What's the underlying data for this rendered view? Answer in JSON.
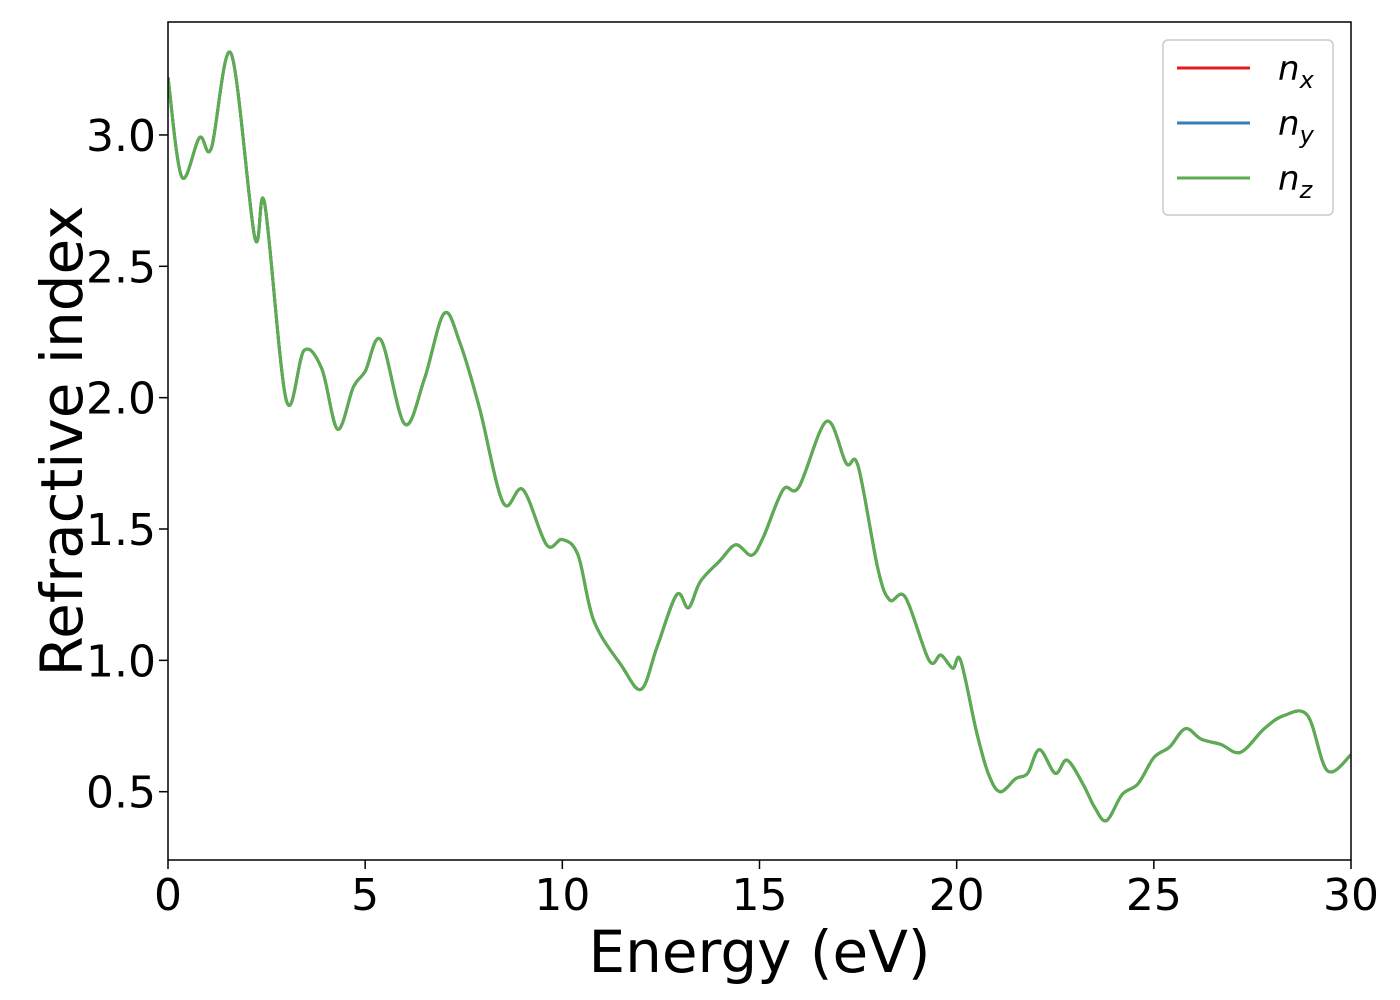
{
  "chart_data": {
    "type": "line",
    "title": "",
    "xlabel": "Energy (eV)",
    "ylabel": "Refractive index",
    "xlim": [
      0,
      30
    ],
    "ylim": [
      0.24,
      3.43
    ],
    "xticks": [
      0,
      5,
      10,
      15,
      20,
      25,
      30
    ],
    "xtick_labels": [
      "0",
      "5",
      "10",
      "15",
      "20",
      "25",
      "30"
    ],
    "yticks": [
      0.5,
      1.0,
      1.5,
      2.0,
      2.5,
      3.0
    ],
    "ytick_labels": [
      "0.5",
      "1.0",
      "1.5",
      "2.0",
      "2.5",
      "3.0"
    ],
    "grid": false,
    "legend_position": "top-right",
    "x": [
      0,
      0.35,
      0.8,
      1.1,
      1.6,
      2.2,
      2.45,
      3.0,
      3.45,
      3.9,
      4.3,
      4.7,
      5.0,
      5.4,
      6.0,
      6.5,
      7.0,
      7.4,
      7.9,
      8.5,
      9.0,
      9.6,
      10.0,
      10.4,
      10.8,
      11.5,
      12.0,
      12.4,
      12.9,
      13.2,
      13.5,
      14.0,
      14.4,
      14.8,
      15.1,
      15.6,
      16.0,
      16.7,
      17.2,
      17.5,
      18.0,
      18.3,
      18.7,
      19.3,
      19.6,
      19.9,
      20.1,
      20.5,
      20.8,
      21.1,
      21.5,
      21.8,
      22.1,
      22.5,
      22.8,
      23.2,
      23.5,
      23.8,
      24.2,
      24.6,
      25.0,
      25.4,
      25.8,
      26.2,
      26.7,
      27.2,
      27.8,
      28.3,
      28.9,
      29.4,
      30.0
    ],
    "series": [
      {
        "name": "n_x",
        "color": "#e41a1c",
        "values": [
          3.22,
          2.84,
          2.99,
          2.95,
          3.31,
          2.61,
          2.74,
          1.99,
          2.18,
          2.11,
          1.88,
          2.04,
          2.1,
          2.22,
          1.9,
          2.07,
          2.32,
          2.21,
          1.96,
          1.6,
          1.65,
          1.44,
          1.46,
          1.4,
          1.15,
          0.98,
          0.89,
          1.05,
          1.25,
          1.2,
          1.3,
          1.38,
          1.44,
          1.4,
          1.47,
          1.65,
          1.66,
          1.91,
          1.75,
          1.74,
          1.35,
          1.23,
          1.24,
          1.0,
          1.02,
          0.97,
          1.0,
          0.73,
          0.57,
          0.5,
          0.55,
          0.57,
          0.66,
          0.57,
          0.62,
          0.53,
          0.44,
          0.39,
          0.49,
          0.53,
          0.63,
          0.67,
          0.74,
          0.7,
          0.68,
          0.65,
          0.74,
          0.79,
          0.79,
          0.58,
          0.64
        ]
      },
      {
        "name": "n_y",
        "color": "#377eb8",
        "values": [
          3.22,
          2.84,
          2.99,
          2.95,
          3.31,
          2.61,
          2.74,
          1.99,
          2.18,
          2.11,
          1.88,
          2.04,
          2.1,
          2.22,
          1.9,
          2.07,
          2.32,
          2.21,
          1.96,
          1.6,
          1.65,
          1.44,
          1.46,
          1.4,
          1.15,
          0.98,
          0.89,
          1.05,
          1.25,
          1.2,
          1.3,
          1.38,
          1.44,
          1.4,
          1.47,
          1.65,
          1.66,
          1.91,
          1.75,
          1.74,
          1.35,
          1.23,
          1.24,
          1.0,
          1.02,
          0.97,
          1.0,
          0.73,
          0.57,
          0.5,
          0.55,
          0.57,
          0.66,
          0.57,
          0.62,
          0.53,
          0.44,
          0.39,
          0.49,
          0.53,
          0.63,
          0.67,
          0.74,
          0.7,
          0.68,
          0.65,
          0.74,
          0.79,
          0.79,
          0.58,
          0.64
        ]
      },
      {
        "name": "n_z",
        "color": "#5aae4f",
        "values": [
          3.22,
          2.84,
          2.99,
          2.95,
          3.31,
          2.61,
          2.74,
          1.99,
          2.18,
          2.11,
          1.88,
          2.04,
          2.1,
          2.22,
          1.9,
          2.07,
          2.32,
          2.21,
          1.96,
          1.6,
          1.65,
          1.44,
          1.46,
          1.4,
          1.15,
          0.98,
          0.89,
          1.05,
          1.25,
          1.2,
          1.3,
          1.38,
          1.44,
          1.4,
          1.47,
          1.65,
          1.66,
          1.91,
          1.75,
          1.74,
          1.35,
          1.23,
          1.24,
          1.0,
          1.02,
          0.97,
          1.0,
          0.73,
          0.57,
          0.5,
          0.55,
          0.57,
          0.66,
          0.57,
          0.62,
          0.53,
          0.44,
          0.39,
          0.49,
          0.53,
          0.63,
          0.67,
          0.74,
          0.7,
          0.68,
          0.65,
          0.74,
          0.79,
          0.79,
          0.58,
          0.64
        ]
      }
    ],
    "legend": [
      {
        "base": "n",
        "sub": "x",
        "color": "#e41a1c"
      },
      {
        "base": "n",
        "sub": "y",
        "color": "#377eb8"
      },
      {
        "base": "n",
        "sub": "z",
        "color": "#5aae4f"
      }
    ]
  }
}
